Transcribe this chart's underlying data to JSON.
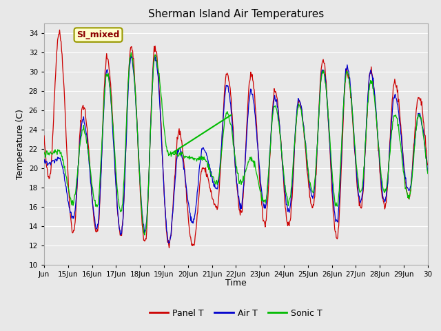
{
  "title": "Sherman Island Air Temperatures",
  "xlabel": "Time",
  "ylabel": "Temperature (C)",
  "ylim": [
    10,
    35
  ],
  "yticks": [
    10,
    12,
    14,
    16,
    18,
    20,
    22,
    24,
    26,
    28,
    30,
    32,
    34
  ],
  "plot_bg_color": "#e8e8e8",
  "fig_bg_color": "#e8e8e8",
  "annotation_text": "SI_mixed",
  "line_colors": {
    "panel": "#cc0000",
    "air": "#0000cc",
    "sonic": "#00bb00"
  },
  "legend_labels": [
    "Panel T",
    "Air T",
    "Sonic T"
  ],
  "xtick_labels": [
    "Jun",
    "15Jun",
    "16Jun",
    "17Jun",
    "18Jun",
    "19Jun",
    "20Jun",
    "21Jun",
    "22Jun",
    "23Jun",
    "24Jun",
    "25Jun",
    "26Jun",
    "27Jun",
    "28Jun",
    "29Jun",
    "30"
  ],
  "xlim": [
    14,
    30
  ],
  "daily_maxs_panel": [
    34.0,
    26.5,
    31.5,
    32.5,
    32.5,
    23.8,
    20.0,
    29.8,
    29.7,
    28.0,
    27.0,
    31.2,
    30.0,
    30.0,
    29.0,
    27.5
  ],
  "daily_mins_panel": [
    19.0,
    13.3,
    13.3,
    13.0,
    12.3,
    12.0,
    11.9,
    16.0,
    15.3,
    14.3,
    14.0,
    16.0,
    12.7,
    16.0,
    16.0,
    17.0
  ],
  "daily_maxs_air": [
    21.0,
    25.0,
    30.0,
    31.5,
    31.5,
    22.0,
    22.0,
    28.5,
    28.0,
    27.2,
    27.0,
    30.3,
    30.5,
    30.0,
    27.5,
    25.5
  ],
  "daily_mins_air": [
    20.5,
    14.8,
    13.8,
    13.2,
    13.5,
    12.3,
    14.5,
    17.8,
    16.0,
    16.0,
    15.5,
    17.0,
    14.5,
    16.5,
    16.5,
    17.5
  ],
  "daily_maxs_sonic": [
    21.8,
    24.0,
    29.8,
    31.8,
    31.5,
    21.5,
    21.0,
    25.7,
    21.0,
    26.5,
    26.5,
    30.0,
    30.0,
    29.0,
    25.5,
    25.5
  ],
  "daily_mins_sonic": [
    21.5,
    16.5,
    16.0,
    15.5,
    13.2,
    21.5,
    21.0,
    18.5,
    18.5,
    16.5,
    16.5,
    17.5,
    16.0,
    17.5,
    17.5,
    17.0
  ],
  "green_line": {
    "x1": 19.3,
    "y1": 21.5,
    "x2": 21.8,
    "y2": 25.5
  }
}
